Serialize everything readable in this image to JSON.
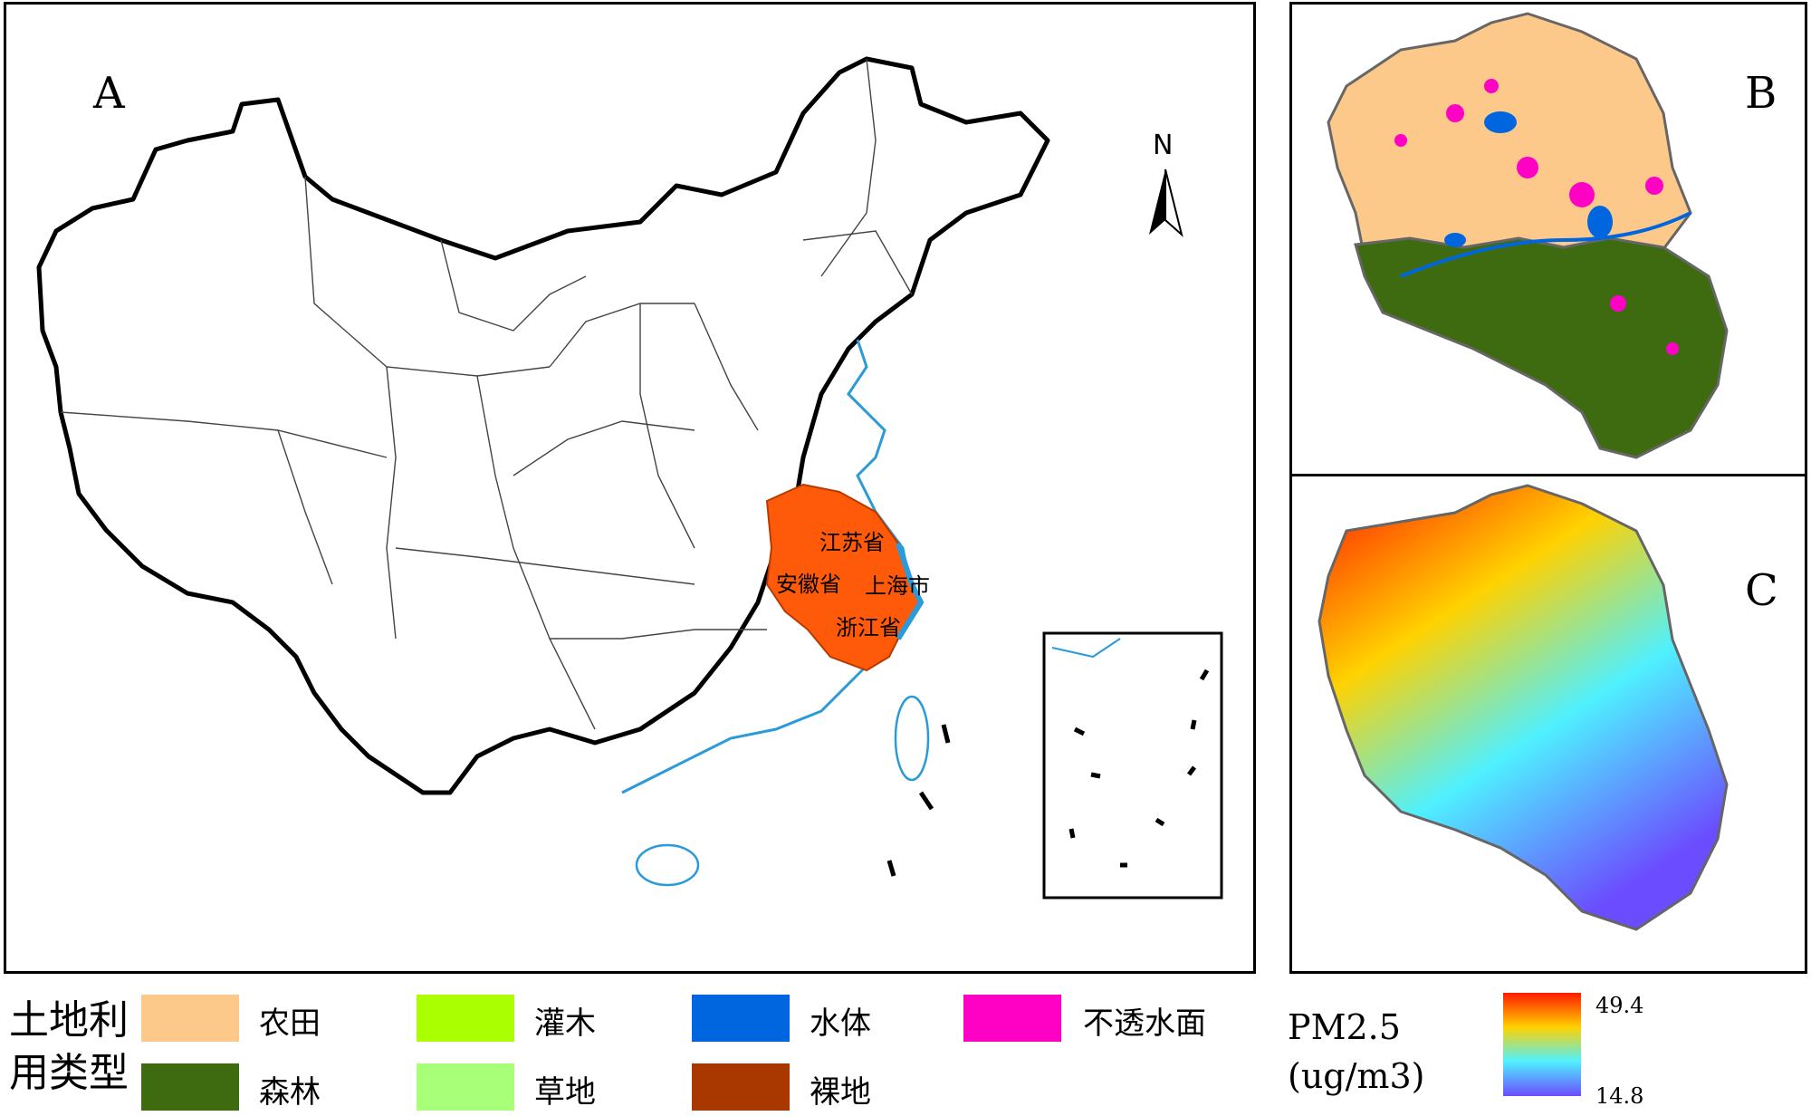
{
  "panels": {
    "a": {
      "label": "A"
    },
    "b": {
      "label": "B"
    },
    "c": {
      "label": "C"
    }
  },
  "north_arrow": {
    "label": "N"
  },
  "provinces": {
    "jiangsu": "江苏省",
    "anhui": "安徽省",
    "shanghai": "上海市",
    "zhejiang": "浙江省"
  },
  "colors": {
    "study_area": "#ff5a0a",
    "farmland": "#fcc98a",
    "forest": "#3f6b10",
    "shrub": "#aaff00",
    "grassland": "#a8ff78",
    "water": "#0066e0",
    "bare_land": "#a83800",
    "impervious": "#ff00c5",
    "coastline": "#2a9bd8"
  },
  "land_use_legend": {
    "title": "土地利用类型",
    "items": [
      {
        "key": "farmland",
        "label": "农田",
        "color": "#fcc98a"
      },
      {
        "key": "shrub",
        "label": "灌木",
        "color": "#aaff00"
      },
      {
        "key": "water",
        "label": "水体",
        "color": "#0066e0"
      },
      {
        "key": "impervious",
        "label": "不透水面",
        "color": "#ff00c5"
      },
      {
        "key": "forest",
        "label": "森林",
        "color": "#3f6b10"
      },
      {
        "key": "grassland",
        "label": "草地",
        "color": "#a8ff78"
      },
      {
        "key": "bare_land",
        "label": "裸地",
        "color": "#a83800"
      }
    ]
  },
  "pm_legend": {
    "title": "PM2.5",
    "unit": "(ug/m3)",
    "max": "49.4",
    "min": "14.8",
    "gradient": [
      "#ff1a00",
      "#ffd200",
      "#4ff0ff",
      "#6b4dff"
    ]
  }
}
